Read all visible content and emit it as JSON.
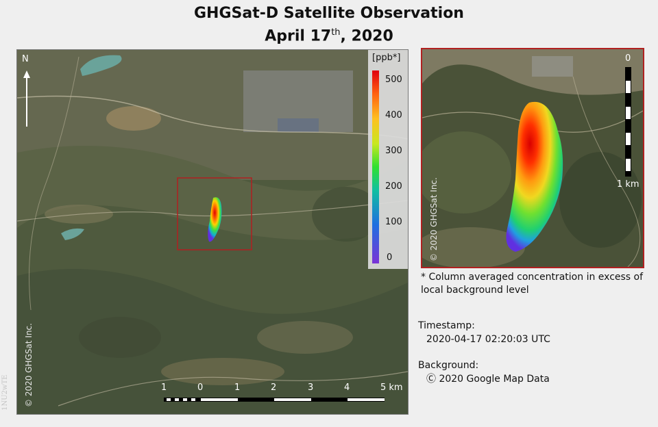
{
  "title": {
    "line1": "GHGSat-D Satellite Observation",
    "line2_prefix": "April 17",
    "line2_sup": "th",
    "line2_suffix": ", 2020"
  },
  "main_map": {
    "north_label": "N",
    "copyright": "© 2020 GHGSat Inc.",
    "colorbar": {
      "unit": "[ppb*]",
      "ticks": [
        "500",
        "400",
        "300",
        "200",
        "100",
        "0"
      ]
    },
    "scale_labels": [
      "1",
      "0",
      "1",
      "2",
      "3",
      "4",
      "5 km"
    ]
  },
  "inset": {
    "copyright": "© 2020 GHGSat Inc.",
    "scale_top": "0",
    "scale_bottom": "1 km"
  },
  "note": "* Column averaged concentration in excess of local background level",
  "timestamp": {
    "label": "Timestamp:",
    "value": "2020-04-17 02:20:03 UTC"
  },
  "background": {
    "label": "Background:",
    "value": "Ⓒ 2020 Google Map Data"
  },
  "watermark": "1NU2wTE",
  "colors": {
    "inset_border": "#b02020",
    "plume_high": "#e00000",
    "plume_low": "#7030d0"
  }
}
